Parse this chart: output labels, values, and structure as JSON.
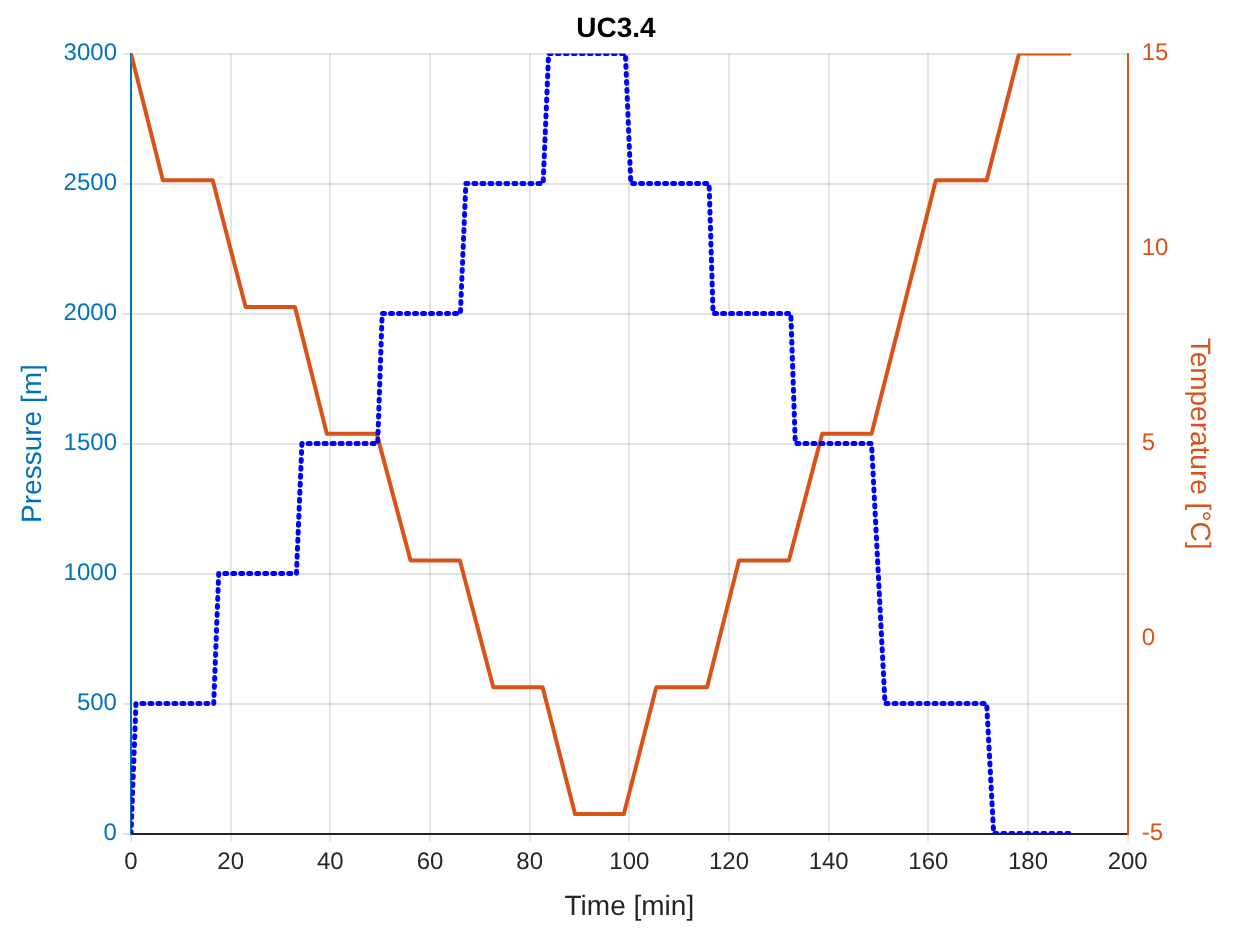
{
  "chart_data": {
    "type": "line",
    "title": "UC3.4",
    "xlabel": "Time [min]",
    "ylabel": "Pressure [m]",
    "y2label": "Temperature [°C]",
    "xlim": [
      0,
      200
    ],
    "xticks": [
      0,
      20,
      40,
      60,
      80,
      100,
      120,
      140,
      160,
      180,
      200
    ],
    "ylim": [
      0,
      3000
    ],
    "yticks": [
      0,
      500,
      1000,
      1500,
      2000,
      2500,
      3000
    ],
    "y2lim": [
      -5,
      15
    ],
    "y2ticks": [
      -5,
      0,
      5,
      10,
      15
    ],
    "grid": true,
    "legend": false,
    "marker": "none",
    "series": [
      {
        "color": "#0000ff",
        "line_style": "dotted",
        "x": [
          0,
          1,
          16.6,
          17.6,
          33.2,
          34.3,
          49.5,
          50.4,
          66.1,
          67.2,
          82.7,
          83.8,
          99.2,
          100.3,
          116,
          116.8,
          132.4,
          133.3,
          148.6,
          151.3,
          171.7,
          173.1,
          188.4
        ],
        "values": [
          0,
          500,
          500,
          1000,
          1000,
          1500,
          1500,
          2000,
          2000,
          2500,
          2500,
          3000,
          3000,
          2500,
          2500,
          2000,
          2000,
          1500,
          1500,
          500,
          500,
          0,
          0
        ]
      },
      {
        "color": "#d95319",
        "line_style": "solid",
        "axis": "y2",
        "x": [
          0,
          6.4,
          16.4,
          23,
          32.9,
          39.3,
          49.3,
          56.1,
          66,
          72.7,
          82.6,
          89.1,
          98.9,
          105.4,
          115.6,
          122,
          132,
          138.7,
          148.6,
          161.5,
          171.7,
          178.2,
          188.3
        ],
        "values": [
          15,
          11.75,
          11.75,
          8.5,
          8.5,
          5.25,
          5.25,
          2,
          2,
          -1.25,
          -1.25,
          -4.5,
          -4.5,
          -1.25,
          -1.25,
          2,
          2,
          5.25,
          5.25,
          11.75,
          11.75,
          15,
          15
        ]
      }
    ]
  }
}
